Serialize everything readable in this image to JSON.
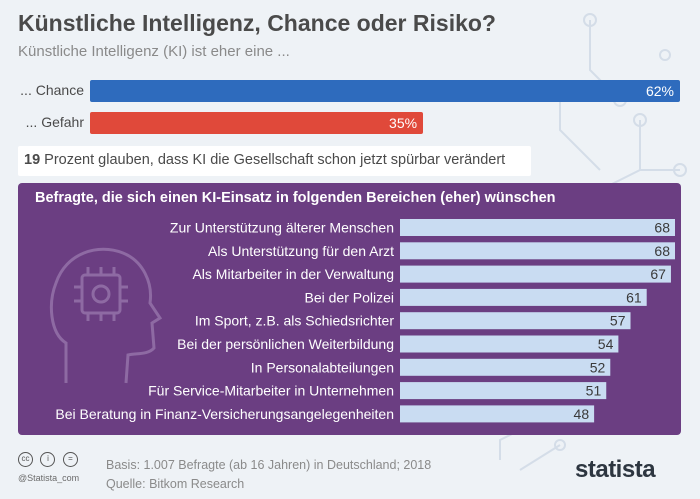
{
  "title": "Künstliche Intelligenz, Chance oder Risiko?",
  "subtitle": "Künstliche Intelligenz (KI) ist eher eine ...",
  "top_bars": [
    {
      "label": "... Chance",
      "value": 62,
      "value_label": "62%",
      "color": "#2e6bbd"
    },
    {
      "label": "... Gefahr",
      "value": 35,
      "value_label": "35%",
      "color": "#e0493a"
    }
  ],
  "stat": {
    "number": "19",
    "text": " Prozent glauben, dass KI die Gesellschaft schon jetzt spürbar verändert"
  },
  "panel": {
    "title": "Befragte, die sich einen KI-Einsatz in folgenden Bereichen (eher) wünschen",
    "background": "#6b3e82",
    "bar_color": "#c9dcf2"
  },
  "chart_data": [
    {
      "type": "bar",
      "title": "Künstliche Intelligenz (KI) ist eher eine ...",
      "categories": [
        "... Chance",
        "... Gefahr"
      ],
      "values": [
        62,
        35
      ],
      "unit": "%"
    },
    {
      "type": "bar",
      "title": "Befragte, die sich einen KI-Einsatz in folgenden Bereichen (eher) wünschen",
      "categories": [
        "Zur Unterstützung älterer Menschen",
        "Als Unterstützung für den Arzt",
        "Als Mitarbeiter in der Verwaltung",
        "Bei der Polizei",
        "Im Sport, z.B. als Schiedsrichter",
        "Bei der persönlichen Weiterbildung",
        "In Personalabteilungen",
        "Für Service-Mitarbeiter in Unternehmen",
        "Bei Beratung in Finanz-Versicherungsangelegenheiten"
      ],
      "values": [
        68,
        68,
        67,
        61,
        57,
        54,
        52,
        51,
        48
      ]
    }
  ],
  "footer": {
    "handle": "@Statista_com",
    "basis": "Basis: 1.007 Befragte (ab 16 Jahren) in Deutschland; 2018",
    "source": "Quelle: Bitkom Research",
    "logo": "statista",
    "cc_icons": [
      "cc-icon",
      "by-icon",
      "equals-icon"
    ]
  }
}
